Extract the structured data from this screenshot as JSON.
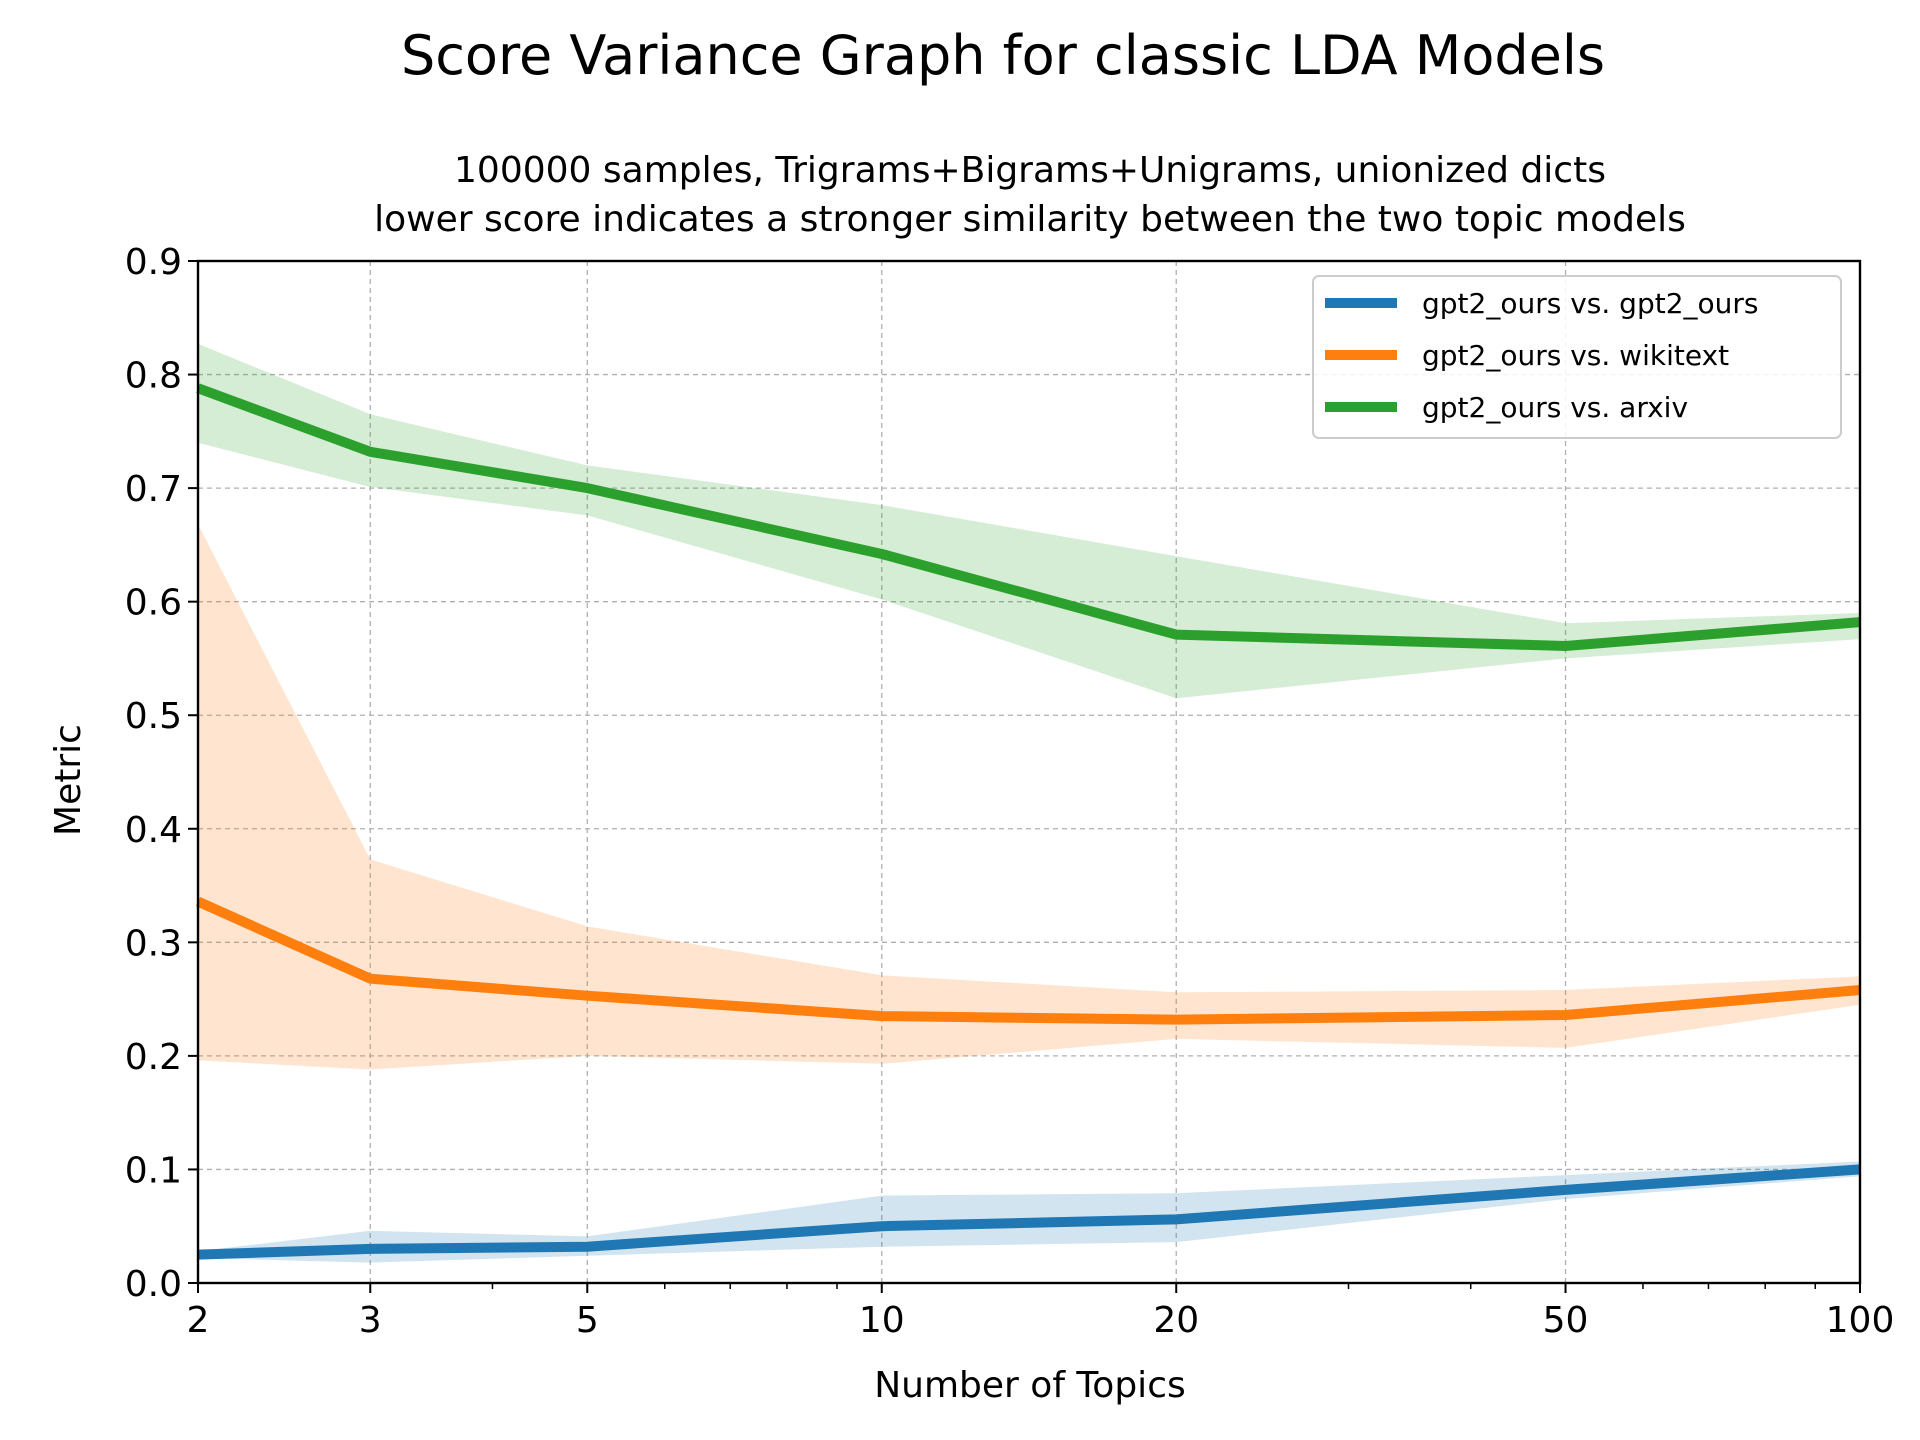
{
  "chart_data": {
    "type": "line",
    "title": "Score Variance Graph for classic LDA Models",
    "subtitle_lines": [
      "100000 samples, Trigrams+Bigrams+Unigrams, unionized dicts",
      "lower score indicates a stronger similarity between the two topic models"
    ],
    "xlabel": "Number of Topics",
    "ylabel": "Metric",
    "x_scale": "log",
    "x": [
      2,
      3,
      5,
      10,
      20,
      50,
      100
    ],
    "x_tick_labels": [
      "2",
      "3",
      "5",
      "10",
      "20",
      "50",
      "100"
    ],
    "xlim": [
      2,
      100
    ],
    "ylim": [
      0,
      0.9
    ],
    "y_ticks": [
      0.0,
      0.1,
      0.2,
      0.3,
      0.4,
      0.5,
      0.6,
      0.7,
      0.8,
      0.9
    ],
    "y_tick_labels": [
      "0.0",
      "0.1",
      "0.2",
      "0.3",
      "0.4",
      "0.5",
      "0.6",
      "0.7",
      "0.8",
      "0.9"
    ],
    "grid": true,
    "legend_position": "top-right",
    "series": [
      {
        "name": "gpt2_ours vs. gpt2_ours",
        "color": "#1f77b4",
        "values": [
          0.025,
          0.03,
          0.032,
          0.05,
          0.056,
          0.082,
          0.1
        ],
        "lower": [
          0.022,
          0.018,
          0.024,
          0.032,
          0.036,
          0.074,
          0.094
        ],
        "upper": [
          0.028,
          0.046,
          0.041,
          0.077,
          0.079,
          0.095,
          0.107
        ]
      },
      {
        "name": "gpt2_ours vs. wikitext",
        "color": "#ff7f0e",
        "values": [
          0.336,
          0.268,
          0.253,
          0.235,
          0.232,
          0.236,
          0.258
        ],
        "lower": [
          0.196,
          0.188,
          0.2,
          0.193,
          0.215,
          0.207,
          0.245
        ],
        "upper": [
          0.668,
          0.373,
          0.314,
          0.271,
          0.256,
          0.258,
          0.27
        ]
      },
      {
        "name": "gpt2_ours vs. arxiv",
        "color": "#2ca02c",
        "values": [
          0.788,
          0.732,
          0.7,
          0.642,
          0.571,
          0.561,
          0.582
        ],
        "lower": [
          0.74,
          0.701,
          0.676,
          0.602,
          0.515,
          0.55,
          0.567
        ],
        "upper": [
          0.827,
          0.765,
          0.72,
          0.685,
          0.64,
          0.581,
          0.59
        ]
      }
    ]
  }
}
